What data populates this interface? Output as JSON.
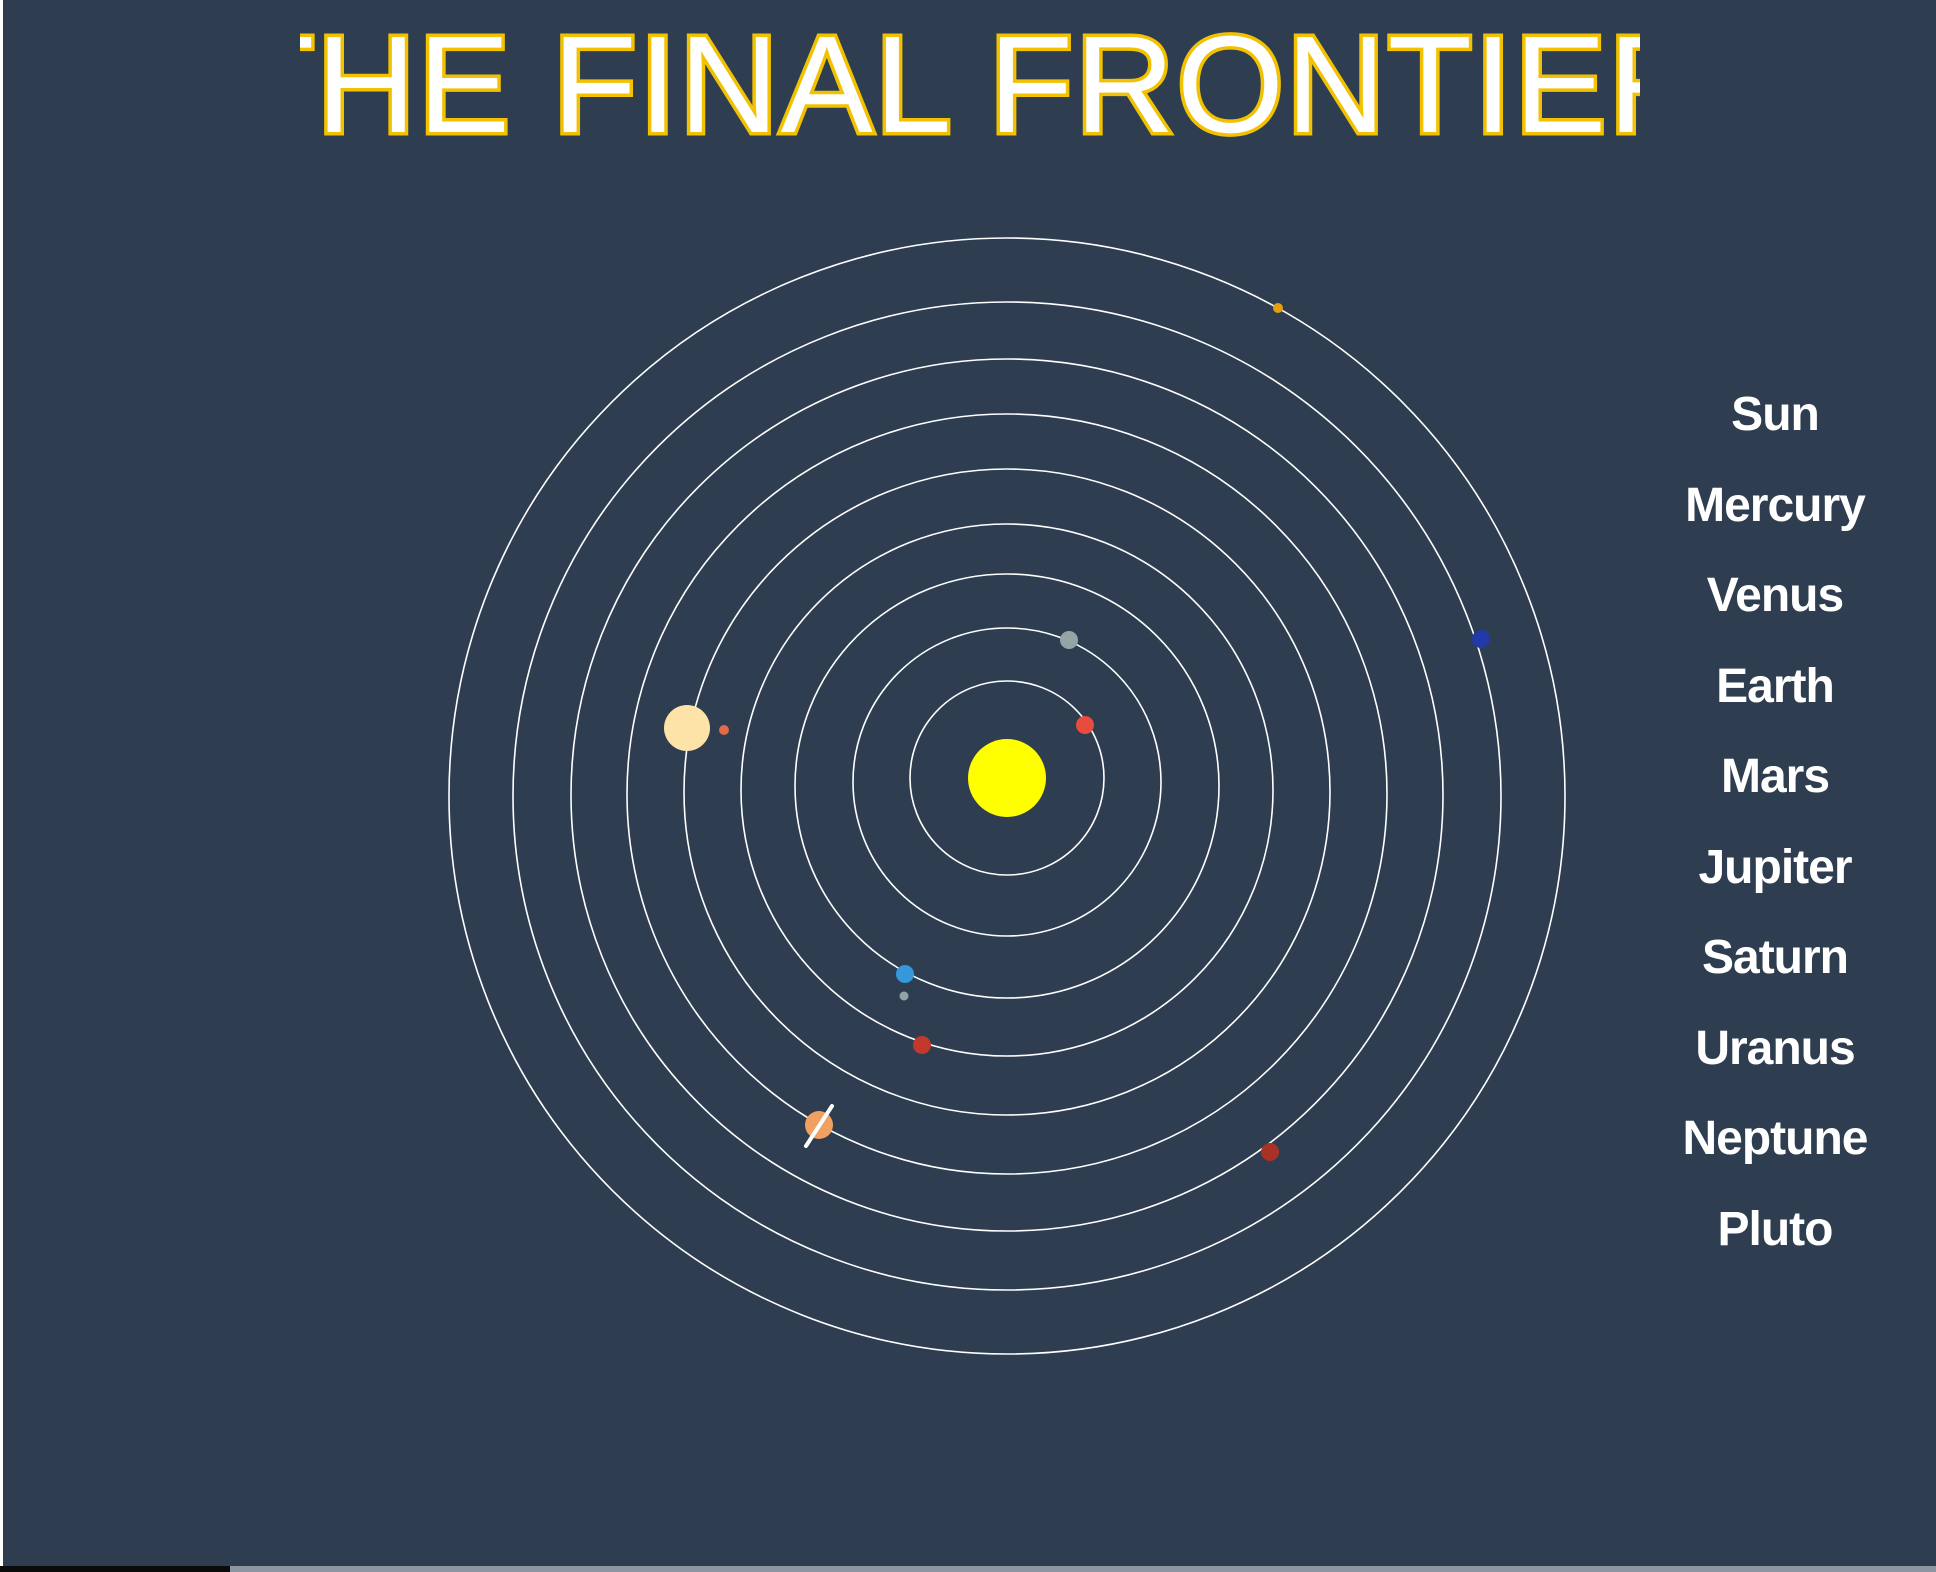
{
  "title": "THE FINAL FRONTIER",
  "colors": {
    "background": "#2e3d50",
    "title_stroke": "#f2c200",
    "title_fill": "#ffffff",
    "orbit": "#ffffff",
    "sun": "#ffff00"
  },
  "planets": [
    {
      "name": "Sun",
      "color": "#ffff00"
    },
    {
      "name": "Mercury",
      "color": "#e74c3c"
    },
    {
      "name": "Venus",
      "color": "#95a5a6"
    },
    {
      "name": "Earth",
      "color": "#3498db"
    },
    {
      "name": "Mars",
      "color": "#c0392b"
    },
    {
      "name": "Jupiter",
      "color": "#f0a060"
    },
    {
      "name": "Saturn",
      "color": "#fde3a7"
    },
    {
      "name": "Uranus",
      "color": "#a93226"
    },
    {
      "name": "Neptune",
      "color": "#2239a8"
    },
    {
      "name": "Pluto",
      "color": "#e5a00d"
    }
  ]
}
